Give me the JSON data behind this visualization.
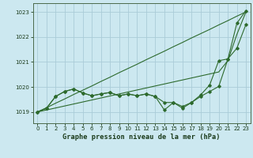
{
  "background_color": "#cce8f0",
  "grid_color": "#aaccd8",
  "line_color": "#2d6a2d",
  "title": "Graphe pression niveau de la mer (hPa)",
  "xlim": [
    -0.5,
    23.5
  ],
  "ylim": [
    1018.55,
    1023.35
  ],
  "yticks": [
    1019,
    1020,
    1021,
    1022,
    1023
  ],
  "xticks": [
    0,
    1,
    2,
    3,
    4,
    5,
    6,
    7,
    8,
    9,
    10,
    11,
    12,
    13,
    14,
    15,
    16,
    17,
    18,
    19,
    20,
    21,
    22,
    23
  ],
  "line1_no_marker": [
    1019.0,
    1019.17,
    1019.35,
    1019.52,
    1019.7,
    1019.87,
    1020.04,
    1020.22,
    1020.39,
    1020.57,
    1020.74,
    1020.91,
    1021.09,
    1021.26,
    1021.43,
    1021.61,
    1021.78,
    1021.96,
    1022.13,
    1022.3,
    1022.48,
    1022.65,
    1022.83,
    1023.0
  ],
  "line2_no_marker": [
    1019.0,
    1019.08,
    1019.16,
    1019.24,
    1019.32,
    1019.4,
    1019.48,
    1019.56,
    1019.64,
    1019.72,
    1019.8,
    1019.88,
    1019.96,
    1020.04,
    1020.12,
    1020.2,
    1020.28,
    1020.36,
    1020.44,
    1020.52,
    1020.6,
    1021.05,
    1022.1,
    1023.0
  ],
  "line3_marker": [
    1019.0,
    1019.15,
    1019.62,
    1019.82,
    1019.92,
    1019.76,
    1019.65,
    1019.72,
    1019.78,
    1019.65,
    1019.72,
    1019.65,
    1019.72,
    1019.62,
    1019.38,
    1019.38,
    1019.22,
    1019.38,
    1019.62,
    1019.82,
    1020.02,
    1021.1,
    1022.55,
    1023.05
  ],
  "line4_marker": [
    1019.0,
    1019.15,
    1019.62,
    1019.82,
    1019.92,
    1019.76,
    1019.65,
    1019.72,
    1019.78,
    1019.65,
    1019.72,
    1019.65,
    1019.72,
    1019.62,
    1019.08,
    1019.38,
    1019.15,
    1019.38,
    1019.68,
    1020.08,
    1021.05,
    1021.12,
    1021.55,
    1022.5
  ]
}
